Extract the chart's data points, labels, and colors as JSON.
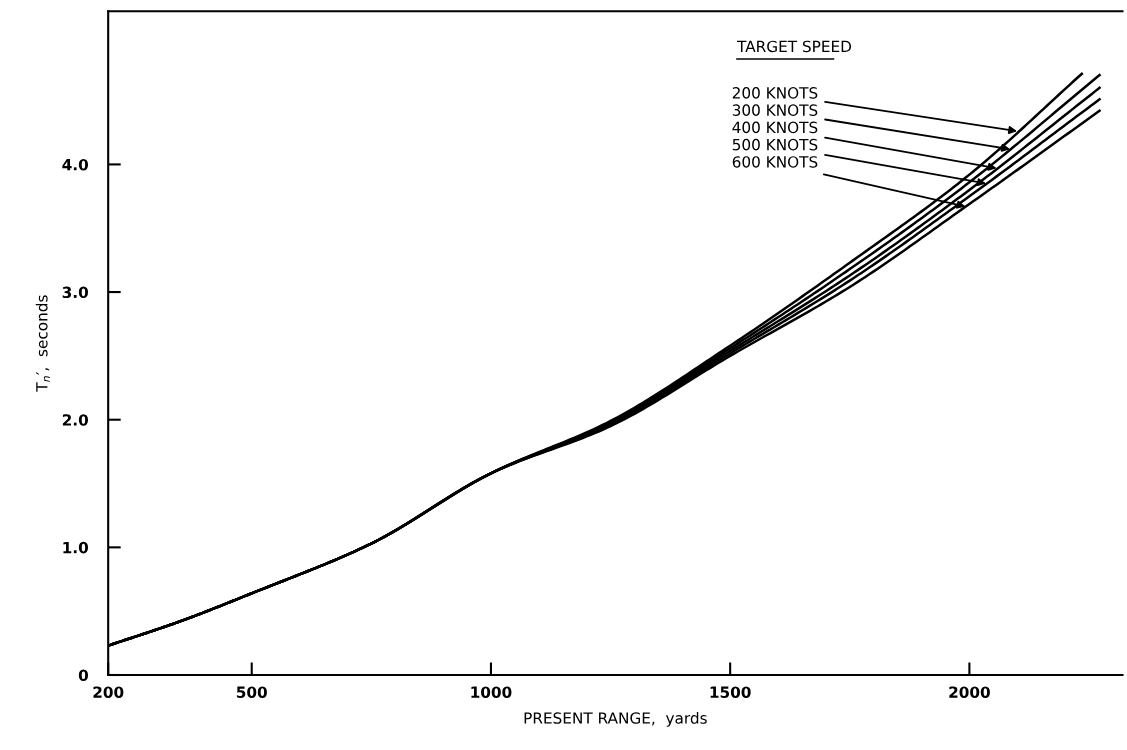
{
  "chart_data": {
    "type": "line",
    "xlabel": "PRESENT RANGE,  yards",
    "ylabel": "T$_{n}$′,  seconds",
    "series": [
      {
        "color": "#000000",
        "x": [
          200,
          350,
          500,
          750,
          1000,
          1250,
          1500,
          1750,
          2000,
          2235
        ],
        "values": [
          0.23,
          0.42,
          0.64,
          1.03,
          1.58,
          1.99,
          2.58,
          3.23,
          3.92,
          4.71
        ]
      },
      {
        "color": "#000000",
        "x": [
          200,
          350,
          500,
          750,
          1000,
          1250,
          1500,
          1750,
          2000,
          2272
        ],
        "values": [
          0.23,
          0.42,
          0.64,
          1.03,
          1.58,
          1.98,
          2.56,
          3.18,
          3.86,
          4.7
        ]
      },
      {
        "color": "#000000",
        "x": [
          200,
          350,
          500,
          750,
          1000,
          1250,
          1500,
          1750,
          2000,
          2272
        ],
        "values": [
          0.23,
          0.42,
          0.64,
          1.03,
          1.58,
          1.97,
          2.54,
          3.13,
          3.8,
          4.6
        ]
      },
      {
        "color": "#000000",
        "x": [
          200,
          350,
          500,
          750,
          1000,
          1250,
          1500,
          1750,
          2000,
          2272
        ],
        "values": [
          0.23,
          0.42,
          0.64,
          1.03,
          1.58,
          1.96,
          2.52,
          3.09,
          3.75,
          4.51
        ]
      },
      {
        "color": "#000000",
        "x": [
          200,
          350,
          500,
          750,
          1000,
          1250,
          1500,
          1750,
          2000,
          2272
        ],
        "values": [
          0.23,
          0.42,
          0.64,
          1.03,
          1.58,
          1.95,
          2.5,
          3.04,
          3.69,
          4.42
        ]
      }
    ],
    "annotations": [
      "TARGET SPEED",
      {
        "text": "200 KNOTS",
        "x": 2100,
        "y": 4.26
      },
      {
        "text": "300 KNOTS",
        "x": 2085,
        "y": 4.12
      },
      {
        "text": "400 KNOTS",
        "x": 2057,
        "y": 3.97
      },
      {
        "text": "500 KNOTS",
        "x": 2035,
        "y": 3.85
      },
      {
        "text": "600 KNOTS",
        "x": 1992,
        "y": 3.67
      }
    ],
    "xlim": [
      200,
      2320
    ],
    "ylim": [
      0,
      5.2
    ],
    "xticks": [
      200,
      500,
      1000,
      1500,
      2000
    ],
    "yticks": [
      0,
      {
        "value": 1,
        "label": "1.0"
      },
      {
        "value": 2,
        "label": "2.0"
      },
      {
        "value": 3,
        "label": "3.0"
      },
      {
        "value": 4,
        "label": "4.0"
      }
    ],
    "grid": false
  }
}
